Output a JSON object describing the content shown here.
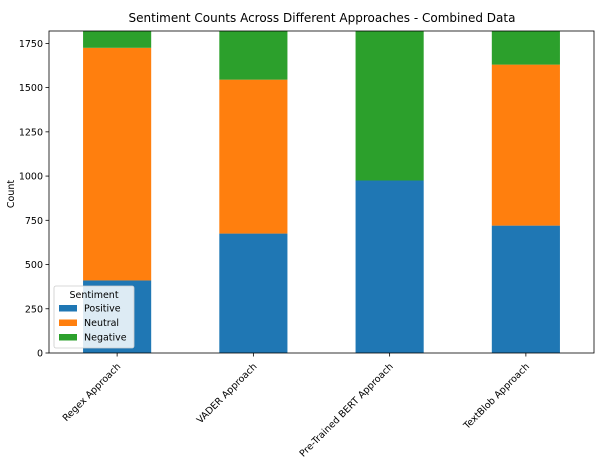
{
  "chart_data": {
    "type": "bar",
    "stacked": true,
    "title": "Sentiment Counts Across Different Approaches - Combined Data",
    "xlabel": "",
    "ylabel": "Count",
    "categories": [
      "Regex Approach",
      "VADER Approach",
      "Pre-Trained BERT Approach",
      "TextBlob Approach"
    ],
    "ylim": [
      0,
      1820
    ],
    "yticks": [
      0,
      250,
      500,
      750,
      1000,
      1250,
      1500,
      1750
    ],
    "grid": false,
    "legend": {
      "title": "Sentiment",
      "placement": "lower-left"
    },
    "series": [
      {
        "name": "Positive",
        "color": "#1f77b4",
        "values": [
          410,
          675,
          975,
          720
        ]
      },
      {
        "name": "Neutral",
        "color": "#ff7f0e",
        "values": [
          1315,
          870,
          0,
          910
        ]
      },
      {
        "name": "Negative",
        "color": "#2ca02c",
        "values": [
          95,
          275,
          845,
          190
        ]
      }
    ]
  }
}
